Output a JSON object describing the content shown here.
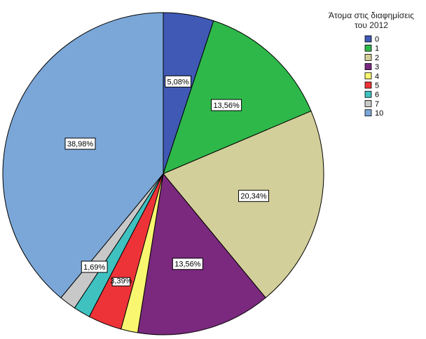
{
  "chart_data": {
    "type": "pie",
    "legend_title_lines": [
      "Άτομα στις διαφημίσεις",
      "του 2012"
    ],
    "legend_position": "top-right",
    "slices": [
      {
        "category": "0",
        "value": 5.08,
        "label": "5,08%",
        "color": "#3f59b5",
        "show_label": true
      },
      {
        "category": "1",
        "value": 13.56,
        "label": "13,56%",
        "color": "#2fb84a",
        "show_label": true
      },
      {
        "category": "2",
        "value": 20.34,
        "label": "20,34%",
        "color": "#d3cf9a",
        "show_label": true
      },
      {
        "category": "3",
        "value": 13.56,
        "label": "13,56%",
        "color": "#7a297e",
        "show_label": true
      },
      {
        "category": "4",
        "value": 1.69,
        "label": "",
        "color": "#f9f770",
        "show_label": false
      },
      {
        "category": "5",
        "value": 3.39,
        "label": "3,39%",
        "color": "#ee3338",
        "show_label": true
      },
      {
        "category": "6",
        "value": 1.69,
        "label": "",
        "color": "#3fc1c0",
        "show_label": false
      },
      {
        "category": "7",
        "value": 1.69,
        "label": "1,69%",
        "color": "#c8c8c8",
        "show_label": true
      },
      {
        "category": "10",
        "value": 38.98,
        "label": "38,98%",
        "color": "#7ba7d8",
        "show_label": true
      }
    ]
  }
}
